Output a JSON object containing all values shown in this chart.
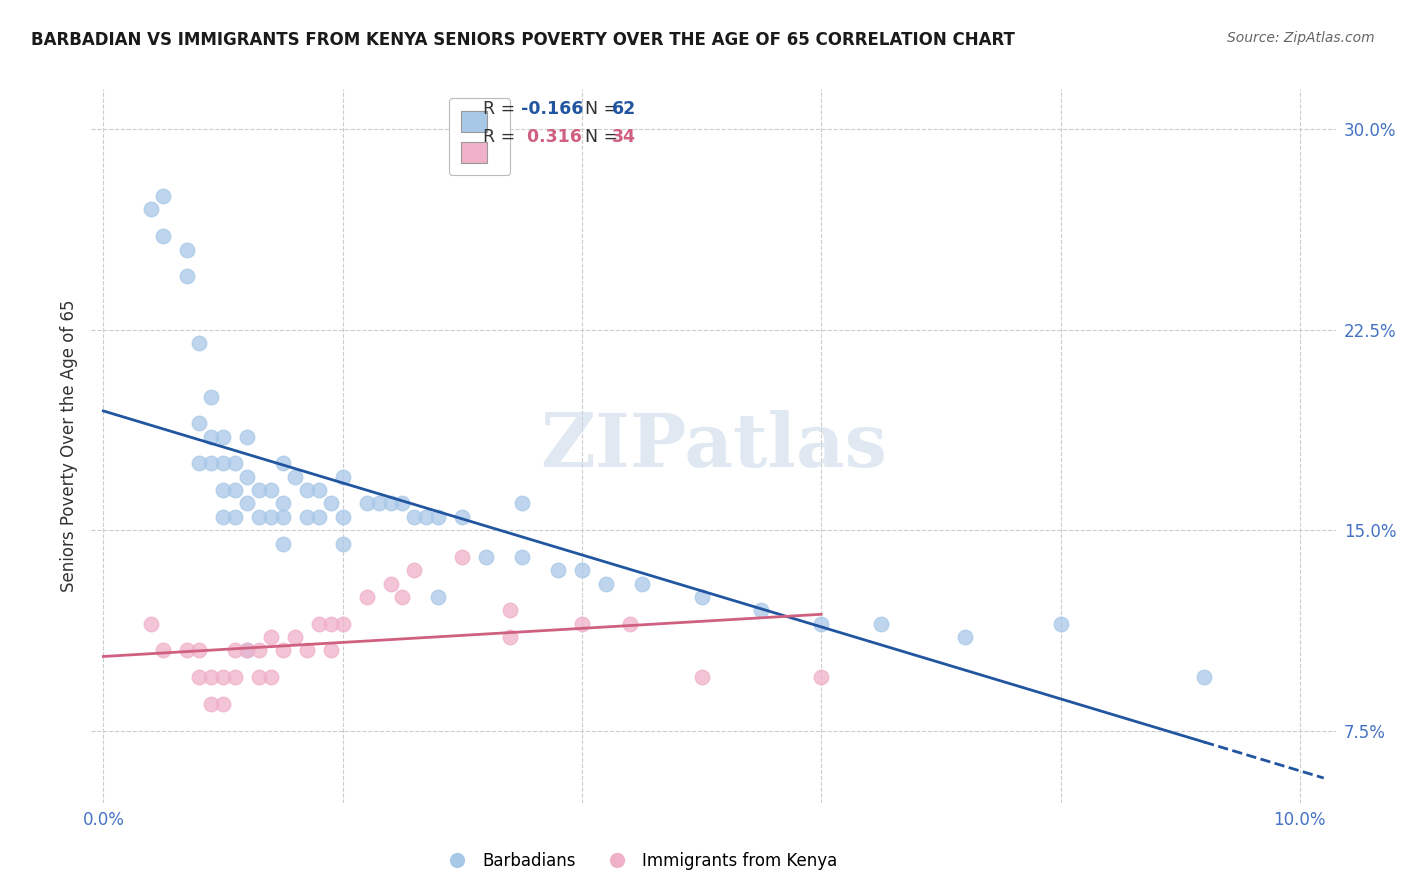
{
  "title": "BARBADIAN VS IMMIGRANTS FROM KENYA SENIORS POVERTY OVER THE AGE OF 65 CORRELATION CHART",
  "source": "Source: ZipAtlas.com",
  "ylabel": "Seniors Poverty Over the Age of 65",
  "xlim": [
    -0.001,
    0.103
  ],
  "ylim": [
    0.048,
    0.315
  ],
  "xtick_vals": [
    0.0,
    0.02,
    0.04,
    0.06,
    0.08,
    0.1
  ],
  "xticklabels": [
    "0.0%",
    "",
    "",
    "",
    "",
    "10.0%"
  ],
  "ytick_vals": [
    0.075,
    0.15,
    0.225,
    0.3
  ],
  "yticklabels": [
    "7.5%",
    "15.0%",
    "22.5%",
    "30.0%"
  ],
  "legend_R_blue": "-0.166",
  "legend_N_blue": "62",
  "legend_R_pink": "0.316",
  "legend_N_pink": "34",
  "blue_color": "#A8C8E8",
  "pink_color": "#F0B0C8",
  "line_blue": "#2255A0",
  "line_pink": "#D06080",
  "watermark": "ZIPatlas",
  "title_color": "#1A1A1A",
  "source_color": "#666666",
  "tick_color": "#4472C4",
  "grid_color": "#CCCCCC",
  "blue_scatter_x": [
    0.004,
    0.005,
    0.005,
    0.007,
    0.007,
    0.008,
    0.008,
    0.008,
    0.009,
    0.009,
    0.009,
    0.01,
    0.01,
    0.01,
    0.01,
    0.011,
    0.011,
    0.011,
    0.012,
    0.012,
    0.012,
    0.013,
    0.013,
    0.014,
    0.014,
    0.015,
    0.015,
    0.015,
    0.016,
    0.017,
    0.017,
    0.018,
    0.018,
    0.019,
    0.02,
    0.02,
    0.022,
    0.023,
    0.024,
    0.025,
    0.026,
    0.027,
    0.028,
    0.03,
    0.032,
    0.035,
    0.038,
    0.04,
    0.042,
    0.045,
    0.05,
    0.055,
    0.06,
    0.065,
    0.072,
    0.08,
    0.092,
    0.035,
    0.028,
    0.015,
    0.02,
    0.012
  ],
  "blue_scatter_y": [
    0.27,
    0.275,
    0.26,
    0.255,
    0.245,
    0.22,
    0.19,
    0.175,
    0.2,
    0.185,
    0.175,
    0.185,
    0.175,
    0.165,
    0.155,
    0.175,
    0.165,
    0.155,
    0.185,
    0.17,
    0.16,
    0.165,
    0.155,
    0.165,
    0.155,
    0.175,
    0.16,
    0.155,
    0.17,
    0.165,
    0.155,
    0.165,
    0.155,
    0.16,
    0.17,
    0.155,
    0.16,
    0.16,
    0.16,
    0.16,
    0.155,
    0.155,
    0.155,
    0.155,
    0.14,
    0.14,
    0.135,
    0.135,
    0.13,
    0.13,
    0.125,
    0.12,
    0.115,
    0.115,
    0.11,
    0.115,
    0.095,
    0.16,
    0.125,
    0.145,
    0.145,
    0.105
  ],
  "pink_scatter_x": [
    0.004,
    0.005,
    0.007,
    0.008,
    0.008,
    0.009,
    0.009,
    0.01,
    0.01,
    0.011,
    0.011,
    0.012,
    0.013,
    0.013,
    0.014,
    0.014,
    0.015,
    0.016,
    0.017,
    0.018,
    0.019,
    0.019,
    0.02,
    0.022,
    0.024,
    0.025,
    0.026,
    0.03,
    0.034,
    0.034,
    0.04,
    0.044,
    0.05,
    0.06
  ],
  "pink_scatter_y": [
    0.115,
    0.105,
    0.105,
    0.105,
    0.095,
    0.095,
    0.085,
    0.095,
    0.085,
    0.105,
    0.095,
    0.105,
    0.105,
    0.095,
    0.11,
    0.095,
    0.105,
    0.11,
    0.105,
    0.115,
    0.115,
    0.105,
    0.115,
    0.125,
    0.13,
    0.125,
    0.135,
    0.14,
    0.12,
    0.11,
    0.115,
    0.115,
    0.095,
    0.095
  ]
}
